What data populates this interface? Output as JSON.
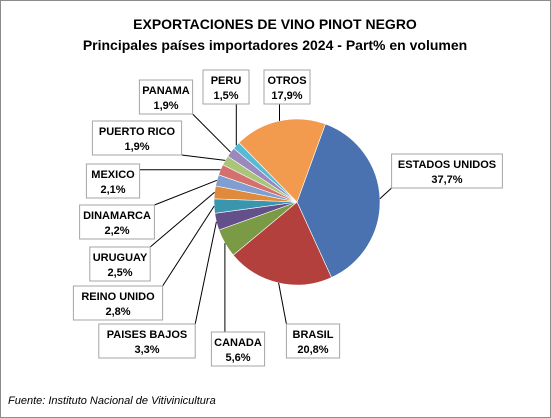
{
  "chart_data": {
    "type": "pie",
    "title": "EXPORTACIONES DE VINO PINOT NEGRO",
    "subtitle": "Principales países importadores 2024 - Part% en volumen",
    "slices": [
      {
        "label": "ESTADOS UNIDOS",
        "value": 37.7,
        "display": "37,7%",
        "color": "#4a72b0"
      },
      {
        "label": "BRASIL",
        "value": 20.8,
        "display": "20,8%",
        "color": "#b3403d"
      },
      {
        "label": "CANADA",
        "value": 5.6,
        "display": "5,6%",
        "color": "#7a9a45"
      },
      {
        "label": "PAISES BAJOS",
        "value": 3.3,
        "display": "3,3%",
        "color": "#63508a"
      },
      {
        "label": "REINO UNIDO",
        "value": 2.8,
        "display": "2,8%",
        "color": "#3a96ae"
      },
      {
        "label": "URUGUAY",
        "value": 2.5,
        "display": "2,5%",
        "color": "#e08a3c"
      },
      {
        "label": "DINAMARCA",
        "value": 2.2,
        "display": "2,2%",
        "color": "#7f9fd2"
      },
      {
        "label": "MEXICO",
        "value": 2.1,
        "display": "2,1%",
        "color": "#d4706d"
      },
      {
        "label": "PUERTO RICO",
        "value": 1.9,
        "display": "1,9%",
        "color": "#aac57a"
      },
      {
        "label": "PANAMA",
        "value": 1.9,
        "display": "1,9%",
        "color": "#9b88bd"
      },
      {
        "label": "PERU",
        "value": 1.5,
        "display": "1,5%",
        "color": "#56bcd6"
      },
      {
        "label": "OTROS",
        "value": 17.9,
        "display": "17,9%",
        "color": "#f29a4d"
      }
    ],
    "source": "Fuente: Instituto Nacional de Vitivinicultura"
  }
}
